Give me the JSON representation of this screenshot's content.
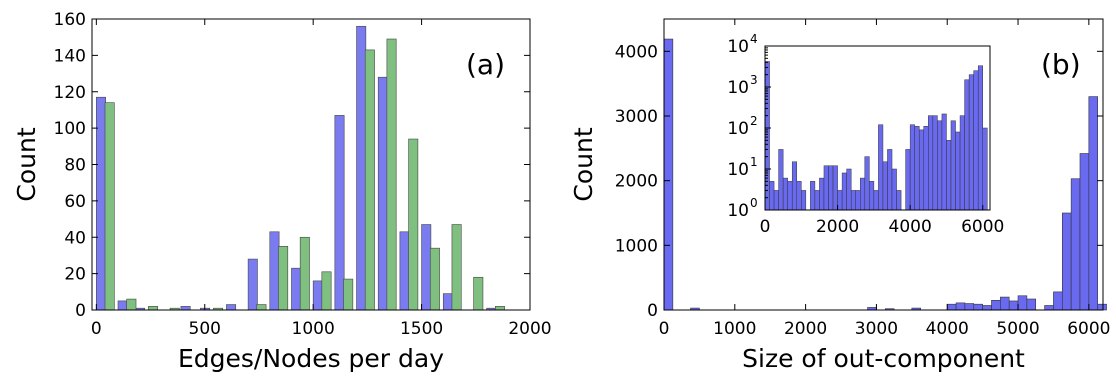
{
  "chart_data": [
    {
      "type": "bar",
      "panel_label": "(a)",
      "xlabel": "Edges/Nodes per day",
      "ylabel": "Count",
      "xlim": [
        -20,
        2000
      ],
      "ylim": [
        0,
        160
      ],
      "xticks": [
        0,
        500,
        1000,
        1500,
        2000
      ],
      "yticks": [
        0,
        20,
        40,
        60,
        80,
        100,
        120,
        140,
        160
      ],
      "bin_width": 43,
      "series": [
        {
          "color": "#7b7bf0",
          "points": [
            [
              0,
              117
            ],
            [
              100,
              5
            ],
            [
              180,
              1
            ],
            [
              390,
              2
            ],
            [
              480,
              1
            ],
            [
              600,
              3
            ],
            [
              700,
              28
            ],
            [
              800,
              43
            ],
            [
              900,
              23
            ],
            [
              1000,
              16
            ],
            [
              1100,
              107
            ],
            [
              1200,
              156
            ],
            [
              1300,
              128
            ],
            [
              1400,
              43
            ],
            [
              1500,
              47
            ],
            [
              1600,
              9
            ],
            [
              1800,
              1
            ]
          ]
        },
        {
          "color": "#7fbf7f",
          "points": [
            [
              40,
              114
            ],
            [
              140,
              6
            ],
            [
              240,
              2
            ],
            [
              340,
              1
            ],
            [
              540,
              1
            ],
            [
              740,
              3
            ],
            [
              840,
              35
            ],
            [
              940,
              40
            ],
            [
              1040,
              21
            ],
            [
              1140,
              17
            ],
            [
              1240,
              143
            ],
            [
              1340,
              149
            ],
            [
              1440,
              94
            ],
            [
              1540,
              34
            ],
            [
              1640,
              47
            ],
            [
              1740,
              18
            ],
            [
              1840,
              2
            ]
          ]
        }
      ]
    },
    {
      "type": "bar",
      "panel_label": "(b)",
      "xlabel": "Size of out-component",
      "ylabel": "Count",
      "xlim": [
        0,
        6200
      ],
      "ylim": [
        0,
        4500
      ],
      "xticks": [
        0,
        1000,
        2000,
        3000,
        4000,
        5000,
        6000
      ],
      "yticks": [
        0,
        1000,
        2000,
        3000,
        4000
      ],
      "bin_width": 125,
      "color": "#6a6af0",
      "bars": [
        [
          0,
          4190
        ],
        [
          375,
          30
        ],
        [
          2875,
          40
        ],
        [
          3125,
          20
        ],
        [
          3500,
          30
        ],
        [
          4000,
          90
        ],
        [
          4125,
          110
        ],
        [
          4250,
          100
        ],
        [
          4375,
          90
        ],
        [
          4500,
          70
        ],
        [
          4625,
          150
        ],
        [
          4750,
          200
        ],
        [
          4875,
          140
        ],
        [
          5000,
          220
        ],
        [
          5125,
          170
        ],
        [
          5375,
          70
        ],
        [
          5500,
          280
        ],
        [
          5625,
          1500
        ],
        [
          5750,
          2030
        ],
        [
          5875,
          2420
        ],
        [
          6000,
          3300
        ],
        [
          6125,
          90
        ]
      ],
      "inset": {
        "yscale": "log",
        "xlim": [
          0,
          6200
        ],
        "ylim_exp": [
          0,
          4
        ],
        "xticks": [
          0,
          2000,
          4000,
          6000
        ],
        "ytick_labels": [
          "10",
          "10",
          "10",
          "10",
          "10"
        ],
        "ytick_exps": [
          "0",
          "1",
          "2",
          "3",
          "4"
        ],
        "bars": [
          [
            0,
            4190
          ],
          [
            125,
            5
          ],
          [
            250,
            3
          ],
          [
            375,
            30
          ],
          [
            500,
            6
          ],
          [
            625,
            5
          ],
          [
            750,
            15
          ],
          [
            875,
            5
          ],
          [
            1000,
            3
          ],
          [
            1125,
            1
          ],
          [
            1250,
            5
          ],
          [
            1375,
            3
          ],
          [
            1500,
            6
          ],
          [
            1625,
            12
          ],
          [
            1750,
            12
          ],
          [
            1875,
            12
          ],
          [
            2000,
            3
          ],
          [
            2125,
            8
          ],
          [
            2250,
            10
          ],
          [
            2375,
            3
          ],
          [
            2500,
            3
          ],
          [
            2625,
            6
          ],
          [
            2750,
            20
          ],
          [
            2875,
            5
          ],
          [
            3000,
            3
          ],
          [
            3125,
            120
          ],
          [
            3250,
            15
          ],
          [
            3375,
            30
          ],
          [
            3500,
            10
          ],
          [
            3625,
            3
          ],
          [
            3750,
            1
          ],
          [
            3875,
            30
          ],
          [
            4000,
            120
          ],
          [
            4125,
            110
          ],
          [
            4250,
            90
          ],
          [
            4375,
            110
          ],
          [
            4500,
            200
          ],
          [
            4625,
            200
          ],
          [
            4750,
            150
          ],
          [
            4875,
            220
          ],
          [
            5000,
            50
          ],
          [
            5125,
            150
          ],
          [
            5250,
            80
          ],
          [
            5375,
            200
          ],
          [
            5500,
            1500
          ],
          [
            5625,
            2000
          ],
          [
            5750,
            2500
          ],
          [
            5875,
            3300
          ],
          [
            6000,
            100
          ]
        ]
      }
    }
  ]
}
